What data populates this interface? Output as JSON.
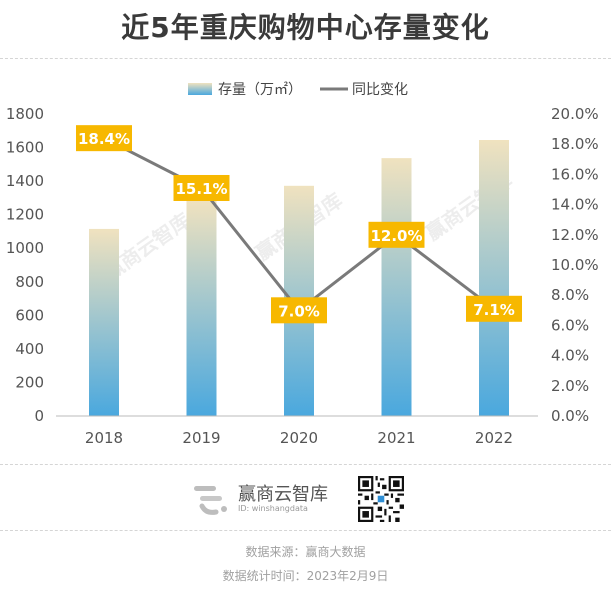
{
  "title": "近5年重庆购物中心存量变化",
  "watermark": "赢商云智库",
  "brand": {
    "name": "赢商云智库",
    "id": "ID: winshangdata"
  },
  "footer": {
    "source": "数据来源：赢商大数据",
    "date": "数据统计时间：2023年2月9日"
  },
  "colors": {
    "bar_top": "#f0e2bf",
    "bar_bottom": "#4aa8de",
    "line": "#7a7a7a",
    "label_bg": "#f7b800",
    "label_text": "#ffffff",
    "axis_text": "#555555"
  },
  "chart_data": {
    "type": "bar",
    "categories": [
      "2018",
      "2019",
      "2020",
      "2021",
      "2022"
    ],
    "series": [
      {
        "name": "存量（万㎡）",
        "type": "bar",
        "axis": "left",
        "values": [
          1115,
          1285,
          1372,
          1537,
          1645
        ]
      },
      {
        "name": "同比变化",
        "type": "line",
        "axis": "right",
        "values": [
          18.4,
          15.1,
          7.0,
          12.0,
          7.1
        ],
        "labels": [
          "18.4%",
          "15.1%",
          "7.0%",
          "12.0%",
          "7.1%"
        ]
      }
    ],
    "ylim": [
      0,
      1800
    ],
    "yticks": [
      "0",
      "200",
      "400",
      "600",
      "800",
      "1000",
      "1200",
      "1400",
      "1600",
      "1800"
    ],
    "y2lim": [
      0,
      20
    ],
    "y2ticks": [
      "0.0%",
      "2.0%",
      "4.0%",
      "6.0%",
      "8.0%",
      "10.0%",
      "12.0%",
      "14.0%",
      "16.0%",
      "18.0%",
      "20.0%"
    ],
    "legend_position": "top",
    "grid": false
  }
}
